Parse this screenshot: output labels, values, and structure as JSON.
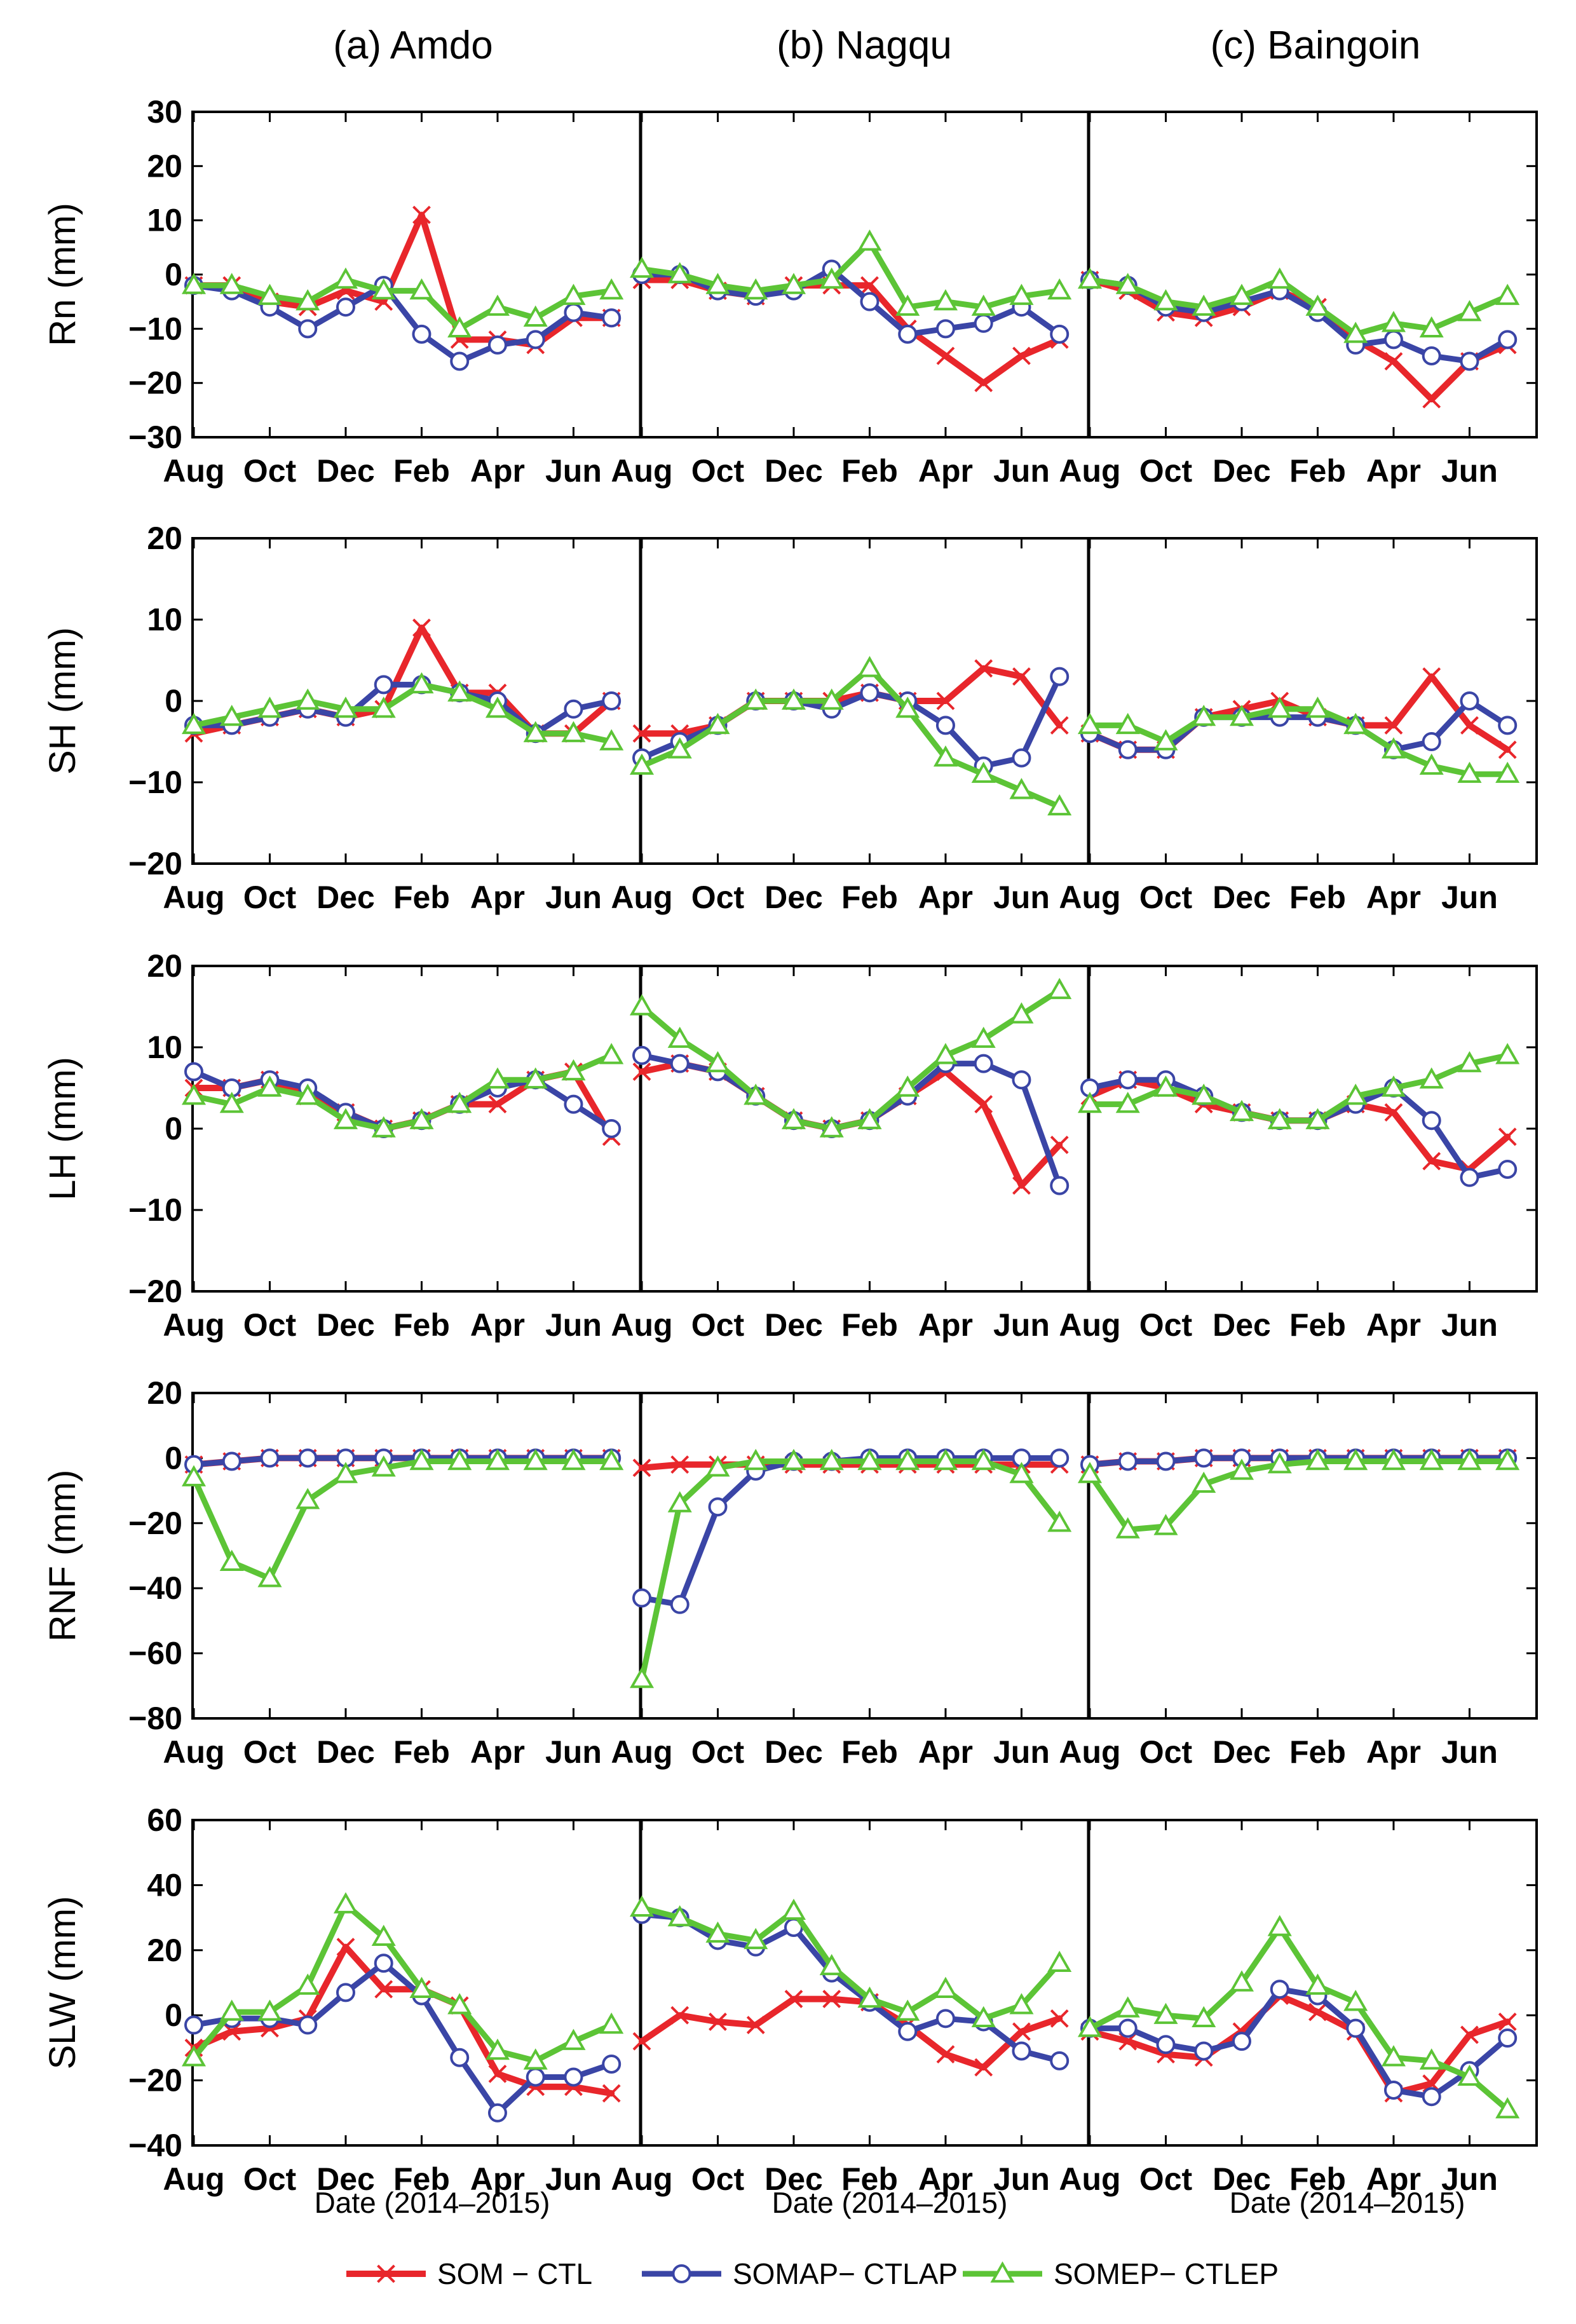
{
  "chart_data": {
    "type": "line",
    "sites": [
      "(a) Amdo",
      "(b) Nagqu",
      "(c) Baingoin"
    ],
    "month_ticks": [
      "Aug",
      "Oct",
      "Dec",
      "Feb",
      "Apr",
      "Jun"
    ],
    "month_tick_index": [
      0,
      2,
      4,
      6,
      8,
      10
    ],
    "months": [
      "Aug 2014",
      "Sep 2014",
      "Oct 2014",
      "Nov 2014",
      "Dec 2014",
      "Jan 2015",
      "Feb 2015",
      "Mar 2015",
      "Apr 2015",
      "May 2015",
      "Jun 2015",
      "Jul 2015"
    ],
    "xlabel": "Date (2014–2015)",
    "series_names": [
      "SOM − CTL",
      "SOMAP− CTLAP",
      "SOMEP− CTLEP"
    ],
    "colors": [
      "#e8262b",
      "#3a45a6",
      "#5cc436"
    ],
    "markers": [
      "x",
      "o",
      "triangle"
    ],
    "rows": [
      {
        "ylabel": "Rn (mm)",
        "ylim": [
          -30,
          30
        ],
        "yticks": [
          "30",
          "20",
          "10",
          "0",
          "−10",
          "−20",
          "−30"
        ],
        "ytick_values": [
          30,
          20,
          10,
          0,
          -10,
          -20,
          -30
        ],
        "panels": [
          [
            [
              -2,
              -2,
              -5,
              -6,
              -3,
              -5,
              11,
              -12,
              -12,
              -13,
              -8,
              -8
            ],
            [
              -2,
              -3,
              -6,
              -10,
              -6,
              -2,
              -11,
              -16,
              -13,
              -12,
              -7,
              -8
            ],
            [
              -2,
              -2,
              -4,
              -5,
              -1,
              -3,
              -3,
              -10,
              -6,
              -8,
              -4,
              -3
            ]
          ],
          [
            [
              -1,
              -1,
              -3,
              -4,
              -2,
              -2,
              -2,
              -10,
              -15,
              -20,
              -15,
              -12
            ],
            [
              0,
              0,
              -3,
              -4,
              -3,
              1,
              -5,
              -11,
              -10,
              -9,
              -6,
              -11
            ],
            [
              1,
              0,
              -2,
              -3,
              -2,
              -1,
              6,
              -6,
              -5,
              -6,
              -4,
              -3
            ]
          ],
          [
            [
              -1,
              -3,
              -7,
              -8,
              -6,
              -3,
              -6,
              -12,
              -16,
              -23,
              -16,
              -13
            ],
            [
              -1,
              -2,
              -6,
              -7,
              -5,
              -3,
              -7,
              -13,
              -12,
              -15,
              -16,
              -12
            ],
            [
              -1,
              -2,
              -5,
              -6,
              -4,
              -1,
              -6,
              -11,
              -9,
              -10,
              -7,
              -4
            ]
          ]
        ]
      },
      {
        "ylabel": "SH (mm)",
        "ylim": [
          -20,
          20
        ],
        "yticks": [
          "20",
          "10",
          "0",
          "−10",
          "−20"
        ],
        "ytick_values": [
          20,
          10,
          0,
          -10,
          -20
        ],
        "panels": [
          [
            [
              -4,
              -3,
              -2,
              -1,
              -2,
              -1,
              9,
              1,
              1,
              -4,
              -4,
              0
            ],
            [
              -3,
              -3,
              -2,
              -1,
              -2,
              2,
              2,
              1,
              0,
              -4,
              -1,
              0
            ],
            [
              -3,
              -2,
              -1,
              0,
              -1,
              -1,
              2,
              1,
              -1,
              -4,
              -4,
              -5
            ]
          ],
          [
            [
              -4,
              -4,
              -3,
              0,
              0,
              0,
              1,
              0,
              0,
              4,
              3,
              -3
            ],
            [
              -7,
              -5,
              -3,
              0,
              0,
              -1,
              1,
              0,
              -3,
              -8,
              -7,
              3
            ],
            [
              -8,
              -6,
              -3,
              0,
              0,
              0,
              4,
              -1,
              -7,
              -9,
              -11,
              -13
            ]
          ],
          [
            [
              -4,
              -6,
              -6,
              -2,
              -1,
              0,
              -2,
              -3,
              -3,
              3,
              -3,
              -6
            ],
            [
              -4,
              -6,
              -6,
              -2,
              -2,
              -2,
              -2,
              -3,
              -6,
              -5,
              0,
              -3
            ],
            [
              -3,
              -3,
              -5,
              -2,
              -2,
              -1,
              -1,
              -3,
              -6,
              -8,
              -9,
              -9
            ]
          ]
        ]
      },
      {
        "ylabel": "LH (mm)",
        "ylim": [
          -20,
          20
        ],
        "yticks": [
          "20",
          "10",
          "0",
          "−10",
          "−20"
        ],
        "ytick_values": [
          20,
          10,
          0,
          -10,
          -20
        ],
        "panels": [
          [
            [
              5,
              5,
              6,
              4,
              2,
              0,
              1,
              3,
              3,
              6,
              7,
              -1
            ],
            [
              7,
              5,
              6,
              5,
              2,
              0,
              1,
              3,
              5,
              6,
              3,
              0
            ],
            [
              4,
              3,
              5,
              4,
              1,
              0,
              1,
              3,
              6,
              6,
              7,
              9
            ]
          ],
          [
            [
              7,
              8,
              7,
              4,
              1,
              0,
              1,
              4,
              7,
              3,
              -7,
              -2
            ],
            [
              9,
              8,
              7,
              4,
              1,
              0,
              1,
              4,
              8,
              8,
              6,
              -7
            ],
            [
              15,
              11,
              8,
              4,
              1,
              0,
              1,
              5,
              9,
              11,
              14,
              17
            ]
          ],
          [
            [
              4,
              6,
              5,
              3,
              2,
              1,
              1,
              3,
              2,
              -4,
              -5,
              -1
            ],
            [
              5,
              6,
              6,
              4,
              2,
              1,
              1,
              3,
              5,
              1,
              -6,
              -5
            ],
            [
              3,
              3,
              5,
              4,
              2,
              1,
              1,
              4,
              5,
              6,
              8,
              9
            ]
          ]
        ]
      },
      {
        "ylabel": "RNF (mm)",
        "ylim": [
          -80,
          20
        ],
        "yticks": [
          "20",
          "0",
          "−20",
          "−40",
          "−60",
          "−80"
        ],
        "ytick_values": [
          20,
          0,
          -20,
          -40,
          -60,
          -80
        ],
        "panels": [
          [
            [
              -2,
              -1,
              0,
              0,
              0,
              0,
              0,
              0,
              0,
              0,
              0,
              0
            ],
            [
              -2,
              -1,
              0,
              0,
              0,
              0,
              0,
              0,
              0,
              0,
              0,
              0
            ],
            [
              -6,
              -32,
              -37,
              -13,
              -5,
              -3,
              -1,
              -1,
              -1,
              -1,
              -1,
              -1
            ]
          ],
          [
            [
              -3,
              -2,
              -2,
              -2,
              -2,
              -2,
              -2,
              -2,
              -2,
              -2,
              -2,
              -2
            ],
            [
              -43,
              -45,
              -15,
              -4,
              -1,
              -1,
              0,
              0,
              0,
              0,
              0,
              0
            ],
            [
              -68,
              -14,
              -3,
              -1,
              -1,
              -1,
              -1,
              -1,
              -1,
              -1,
              -5,
              -20
            ]
          ],
          [
            [
              -2,
              -1,
              -1,
              0,
              0,
              0,
              0,
              0,
              0,
              0,
              0,
              0
            ],
            [
              -2,
              -1,
              -1,
              0,
              0,
              0,
              0,
              0,
              0,
              0,
              0,
              0
            ],
            [
              -5,
              -22,
              -21,
              -8,
              -4,
              -2,
              -1,
              -1,
              -1,
              -1,
              -1,
              -1
            ]
          ]
        ]
      },
      {
        "ylabel": "SLW (mm)",
        "ylim": [
          -40,
          60
        ],
        "yticks": [
          "60",
          "40",
          "20",
          "0",
          "−20",
          "−40"
        ],
        "ytick_values": [
          60,
          40,
          20,
          0,
          -20,
          -40
        ],
        "panels": [
          [
            [
              -10,
              -5,
              -4,
              -1,
              21,
              8,
              8,
              3,
              -18,
              -22,
              -22,
              -24
            ],
            [
              -3,
              -1,
              -1,
              -3,
              7,
              16,
              6,
              -13,
              -30,
              -19,
              -19,
              -15
            ],
            [
              -13,
              1,
              1,
              9,
              34,
              24,
              8,
              3,
              -11,
              -14,
              -8,
              -3
            ]
          ],
          [
            [
              -8,
              0,
              -2,
              -3,
              5,
              5,
              4,
              -3,
              -12,
              -16,
              -5,
              -1
            ],
            [
              31,
              30,
              23,
              21,
              27,
              13,
              4,
              -5,
              -1,
              -2,
              -11,
              -14
            ],
            [
              33,
              30,
              25,
              23,
              32,
              15,
              5,
              1,
              8,
              -1,
              3,
              16
            ]
          ],
          [
            [
              -5,
              -8,
              -12,
              -13,
              -5,
              6,
              1,
              -5,
              -24,
              -21,
              -6,
              -2
            ],
            [
              -4,
              -4,
              -9,
              -11,
              -8,
              8,
              6,
              -4,
              -23,
              -25,
              -17,
              -7
            ],
            [
              -4,
              2,
              0,
              -1,
              10,
              27,
              9,
              4,
              -13,
              -14,
              -19,
              -29
            ]
          ]
        ]
      }
    ]
  }
}
